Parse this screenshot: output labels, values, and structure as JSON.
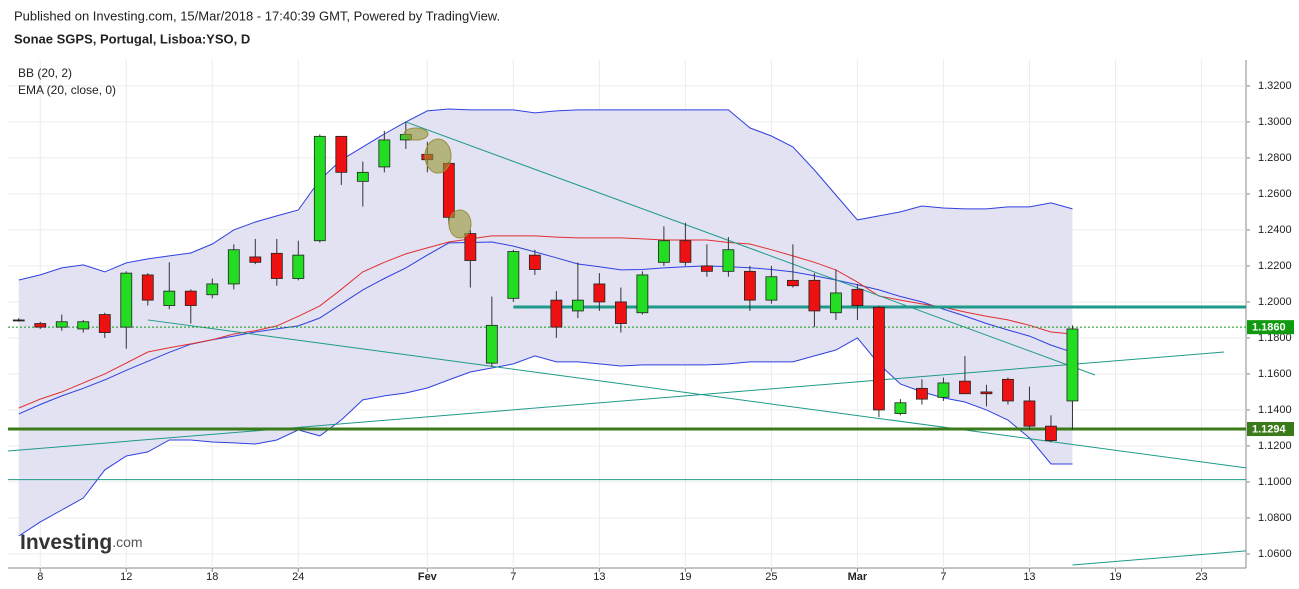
{
  "header": {
    "published": "Published on Investing.com, 15/Mar/2018 - 17:40:39 GMT, Powered by TradingView.",
    "symbol": "Sonae SGPS, Portugal, Lisboa:YSO, D"
  },
  "logo": {
    "main": "Investing",
    "suffix": ".com"
  },
  "chart_data": {
    "type": "candlestick",
    "indicators": [
      "BB (20, 2)",
      "EMA (20, close, 0)"
    ],
    "categories": [
      null,
      "8",
      null,
      null,
      null,
      "12",
      null,
      null,
      null,
      "18",
      null,
      null,
      null,
      "24",
      null,
      null,
      null,
      null,
      null,
      "Fev",
      null,
      null,
      null,
      "7",
      null,
      null,
      null,
      "13",
      null,
      null,
      null,
      "19",
      null,
      null,
      null,
      "25",
      null,
      null,
      null,
      "Mar",
      null,
      null,
      null,
      "7",
      null,
      null,
      null,
      "13",
      null,
      null,
      null,
      "19",
      null,
      null,
      null,
      "23",
      null
    ],
    "xlim": [
      -0.5,
      57.07
    ],
    "open": [
      1.19,
      1.188,
      1.186,
      1.185,
      1.193,
      1.186,
      1.215,
      1.198,
      1.206,
      1.204,
      1.21,
      1.225,
      1.227,
      1.213,
      1.234,
      1.292,
      1.267,
      1.275,
      1.29,
      1.282,
      1.277,
      1.238,
      1.166,
      1.202,
      1.226,
      1.201,
      1.195,
      1.21,
      1.2,
      1.194,
      1.222,
      1.234,
      1.22,
      1.217,
      1.217,
      1.201,
      1.212,
      1.212,
      1.194,
      1.207,
      1.197,
      1.138,
      1.152,
      1.147,
      1.156,
      1.15,
      1.157,
      1.145,
      1.131,
      1.145,
      null,
      null,
      null,
      null,
      null,
      null,
      null
    ],
    "high": [
      1.191,
      1.189,
      1.193,
      1.19,
      1.194,
      1.217,
      1.216,
      1.222,
      1.207,
      1.213,
      1.232,
      1.235,
      1.235,
      1.234,
      1.293,
      1.292,
      1.278,
      1.295,
      1.3,
      1.289,
      1.278,
      1.24,
      1.203,
      1.229,
      1.229,
      1.206,
      1.222,
      1.216,
      1.208,
      1.217,
      1.242,
      1.244,
      1.232,
      1.236,
      1.22,
      1.22,
      1.232,
      1.216,
      1.218,
      1.21,
      1.198,
      1.146,
      1.157,
      1.158,
      1.17,
      1.154,
      1.158,
      1.153,
      1.137,
      1.187,
      null,
      null,
      null,
      null,
      null,
      null,
      null
    ],
    "low": [
      1.189,
      1.185,
      1.184,
      1.183,
      1.18,
      1.174,
      1.198,
      1.196,
      1.188,
      1.202,
      1.207,
      1.221,
      1.209,
      1.212,
      1.233,
      1.265,
      1.253,
      1.272,
      1.285,
      1.272,
      1.243,
      1.208,
      1.164,
      1.2,
      1.215,
      1.18,
      1.191,
      1.195,
      1.183,
      1.193,
      1.22,
      1.22,
      1.214,
      1.214,
      1.195,
      1.199,
      1.208,
      1.186,
      1.19,
      1.19,
      1.136,
      1.137,
      1.143,
      1.145,
      1.149,
      1.142,
      1.143,
      1.129,
      1.122,
      1.129,
      null,
      null,
      null,
      null,
      null,
      null,
      null
    ],
    "close": [
      1.19,
      1.186,
      1.189,
      1.189,
      1.183,
      1.216,
      1.201,
      1.206,
      1.198,
      1.21,
      1.229,
      1.222,
      1.213,
      1.226,
      1.292,
      1.272,
      1.272,
      1.29,
      1.293,
      1.279,
      1.247,
      1.223,
      1.187,
      1.228,
      1.218,
      1.186,
      1.201,
      1.2,
      1.188,
      1.215,
      1.234,
      1.222,
      1.217,
      1.229,
      1.201,
      1.214,
      1.209,
      1.195,
      1.205,
      1.198,
      1.14,
      1.144,
      1.146,
      1.155,
      1.149,
      1.149,
      1.145,
      1.131,
      1.123,
      1.185,
      null,
      null,
      null,
      null,
      null,
      null,
      null
    ],
    "bb": {
      "color": "#3040e0",
      "fill": "#e2e2f2",
      "upper": [
        1.2122,
        1.215,
        1.2189,
        1.2206,
        1.2167,
        1.2217,
        1.2239,
        1.2256,
        1.2272,
        1.2322,
        1.24,
        1.2444,
        1.2478,
        1.2511,
        1.2678,
        1.2789,
        1.2861,
        1.2933,
        1.3,
        1.3061,
        1.3072,
        1.3067,
        1.3067,
        1.3067,
        1.305,
        1.3061,
        1.3067,
        1.3067,
        1.3067,
        1.3067,
        1.3067,
        1.3067,
        1.3067,
        1.3067,
        1.2967,
        1.2922,
        1.2861,
        1.2733,
        1.2594,
        1.2456,
        1.2478,
        1.25,
        1.2533,
        1.2522,
        1.2517,
        1.2517,
        1.2528,
        1.2528,
        1.255,
        1.2517,
        null,
        null,
        null,
        null,
        null,
        null,
        null
      ],
      "basis": [
        1.1378,
        1.143,
        1.1478,
        1.152,
        1.1567,
        1.162,
        1.167,
        1.172,
        1.1765,
        1.179,
        1.181,
        1.1833,
        1.185,
        1.1867,
        1.1911,
        1.1989,
        1.2067,
        1.213,
        1.2189,
        1.226,
        1.2328,
        1.233,
        1.2333,
        1.231,
        1.2278,
        1.2245,
        1.2211,
        1.2195,
        1.2178,
        1.218,
        1.2189,
        1.2195,
        1.22,
        1.2195,
        1.219,
        1.218,
        1.2167,
        1.2145,
        1.2122,
        1.2095,
        1.2067,
        1.203,
        1.2,
        1.196,
        1.1922,
        1.188,
        1.1844,
        1.181,
        1.176,
        1.172,
        null,
        null,
        null,
        null,
        null,
        null,
        null
      ],
      "lower": [
        1.07,
        1.0778,
        1.0844,
        1.0911,
        1.1067,
        1.1144,
        1.1167,
        1.1233,
        1.1233,
        1.1222,
        1.1217,
        1.1211,
        1.1233,
        1.1289,
        1.1256,
        1.1344,
        1.1456,
        1.1478,
        1.1494,
        1.1522,
        1.1567,
        1.1611,
        1.1633,
        1.1656,
        1.17,
        1.1667,
        1.1667,
        1.1656,
        1.1644,
        1.165,
        1.165,
        1.165,
        1.165,
        1.1656,
        1.1667,
        1.1667,
        1.1667,
        1.17,
        1.1733,
        1.18,
        1.1656,
        1.1544,
        1.15,
        1.1467,
        1.1444,
        1.14,
        1.1344,
        1.1244,
        1.11,
        1.11,
        null,
        null,
        null,
        null,
        null,
        null,
        null
      ]
    },
    "ema": {
      "color": "#e03030",
      "values": [
        1.1411,
        1.146,
        1.15,
        1.155,
        1.16,
        1.166,
        1.1722,
        1.1745,
        1.1767,
        1.179,
        1.1822,
        1.184,
        1.1867,
        1.192,
        1.1978,
        1.207,
        1.2167,
        1.222,
        1.2267,
        1.23,
        1.2333,
        1.235,
        1.2367,
        1.2367,
        1.2367,
        1.236,
        1.2356,
        1.2356,
        1.2356,
        1.235,
        1.2344,
        1.2344,
        1.2344,
        1.233,
        1.2322,
        1.229,
        1.2256,
        1.222,
        1.2178,
        1.211,
        1.2033,
        1.201,
        1.1989,
        1.197,
        1.1944,
        1.192,
        1.19,
        1.187,
        1.1833,
        1.1822,
        null,
        null,
        null,
        null,
        null,
        null,
        null
      ]
    },
    "up_color": "#22dd22",
    "down_color": "#ee1111",
    "levels": [
      {
        "value": 1.186,
        "label": "1.1860",
        "color": "#109a10",
        "dotted": true
      },
      {
        "value": 1.1294,
        "label": "1.1294",
        "color": "#3a7a1a",
        "dotted": false
      }
    ],
    "hlines": [
      {
        "value": 1.1972,
        "from": 23,
        "color": "#1f9a8a",
        "width": 3
      },
      {
        "value": 1.1013,
        "from": -0.5,
        "color": "#1f9a8a",
        "width": 1
      }
    ],
    "trend_lines": [
      {
        "x1": 18,
        "y1": 1.3,
        "x2": 50.05,
        "y2": 1.1594
      },
      {
        "x1": 6,
        "y1": 1.19,
        "x2": 57.07,
        "y2": 1.1078
      },
      {
        "x1": -0.5,
        "y1": 1.1172,
        "x2": 56.05,
        "y2": 1.1722
      },
      {
        "x1": 49,
        "y1": 1.0539,
        "x2": 57.07,
        "y2": 1.0617
      }
    ],
    "trend_color": "#1f9a8a",
    "ylim": [
      1.0522,
      1.3344
    ],
    "yticks": [
      {
        "value": 1.06,
        "label": "1.0600"
      },
      {
        "value": 1.08,
        "label": "1.0800"
      },
      {
        "value": 1.1,
        "label": "1.1000"
      },
      {
        "value": 1.12,
        "label": "1.1200"
      },
      {
        "value": 1.14,
        "label": "1.1400"
      },
      {
        "value": 1.16,
        "label": "1.1600"
      },
      {
        "value": 1.18,
        "label": "1.1800"
      },
      {
        "value": 1.2,
        "label": "1.2000"
      },
      {
        "value": 1.22,
        "label": "1.2200"
      },
      {
        "value": 1.24,
        "label": "1.2400"
      },
      {
        "value": 1.26,
        "label": "1.2600"
      },
      {
        "value": 1.28,
        "label": "1.2800"
      },
      {
        "value": 1.3,
        "label": "1.3000"
      },
      {
        "value": 1.32,
        "label": "1.3200"
      }
    ],
    "grid": true
  }
}
